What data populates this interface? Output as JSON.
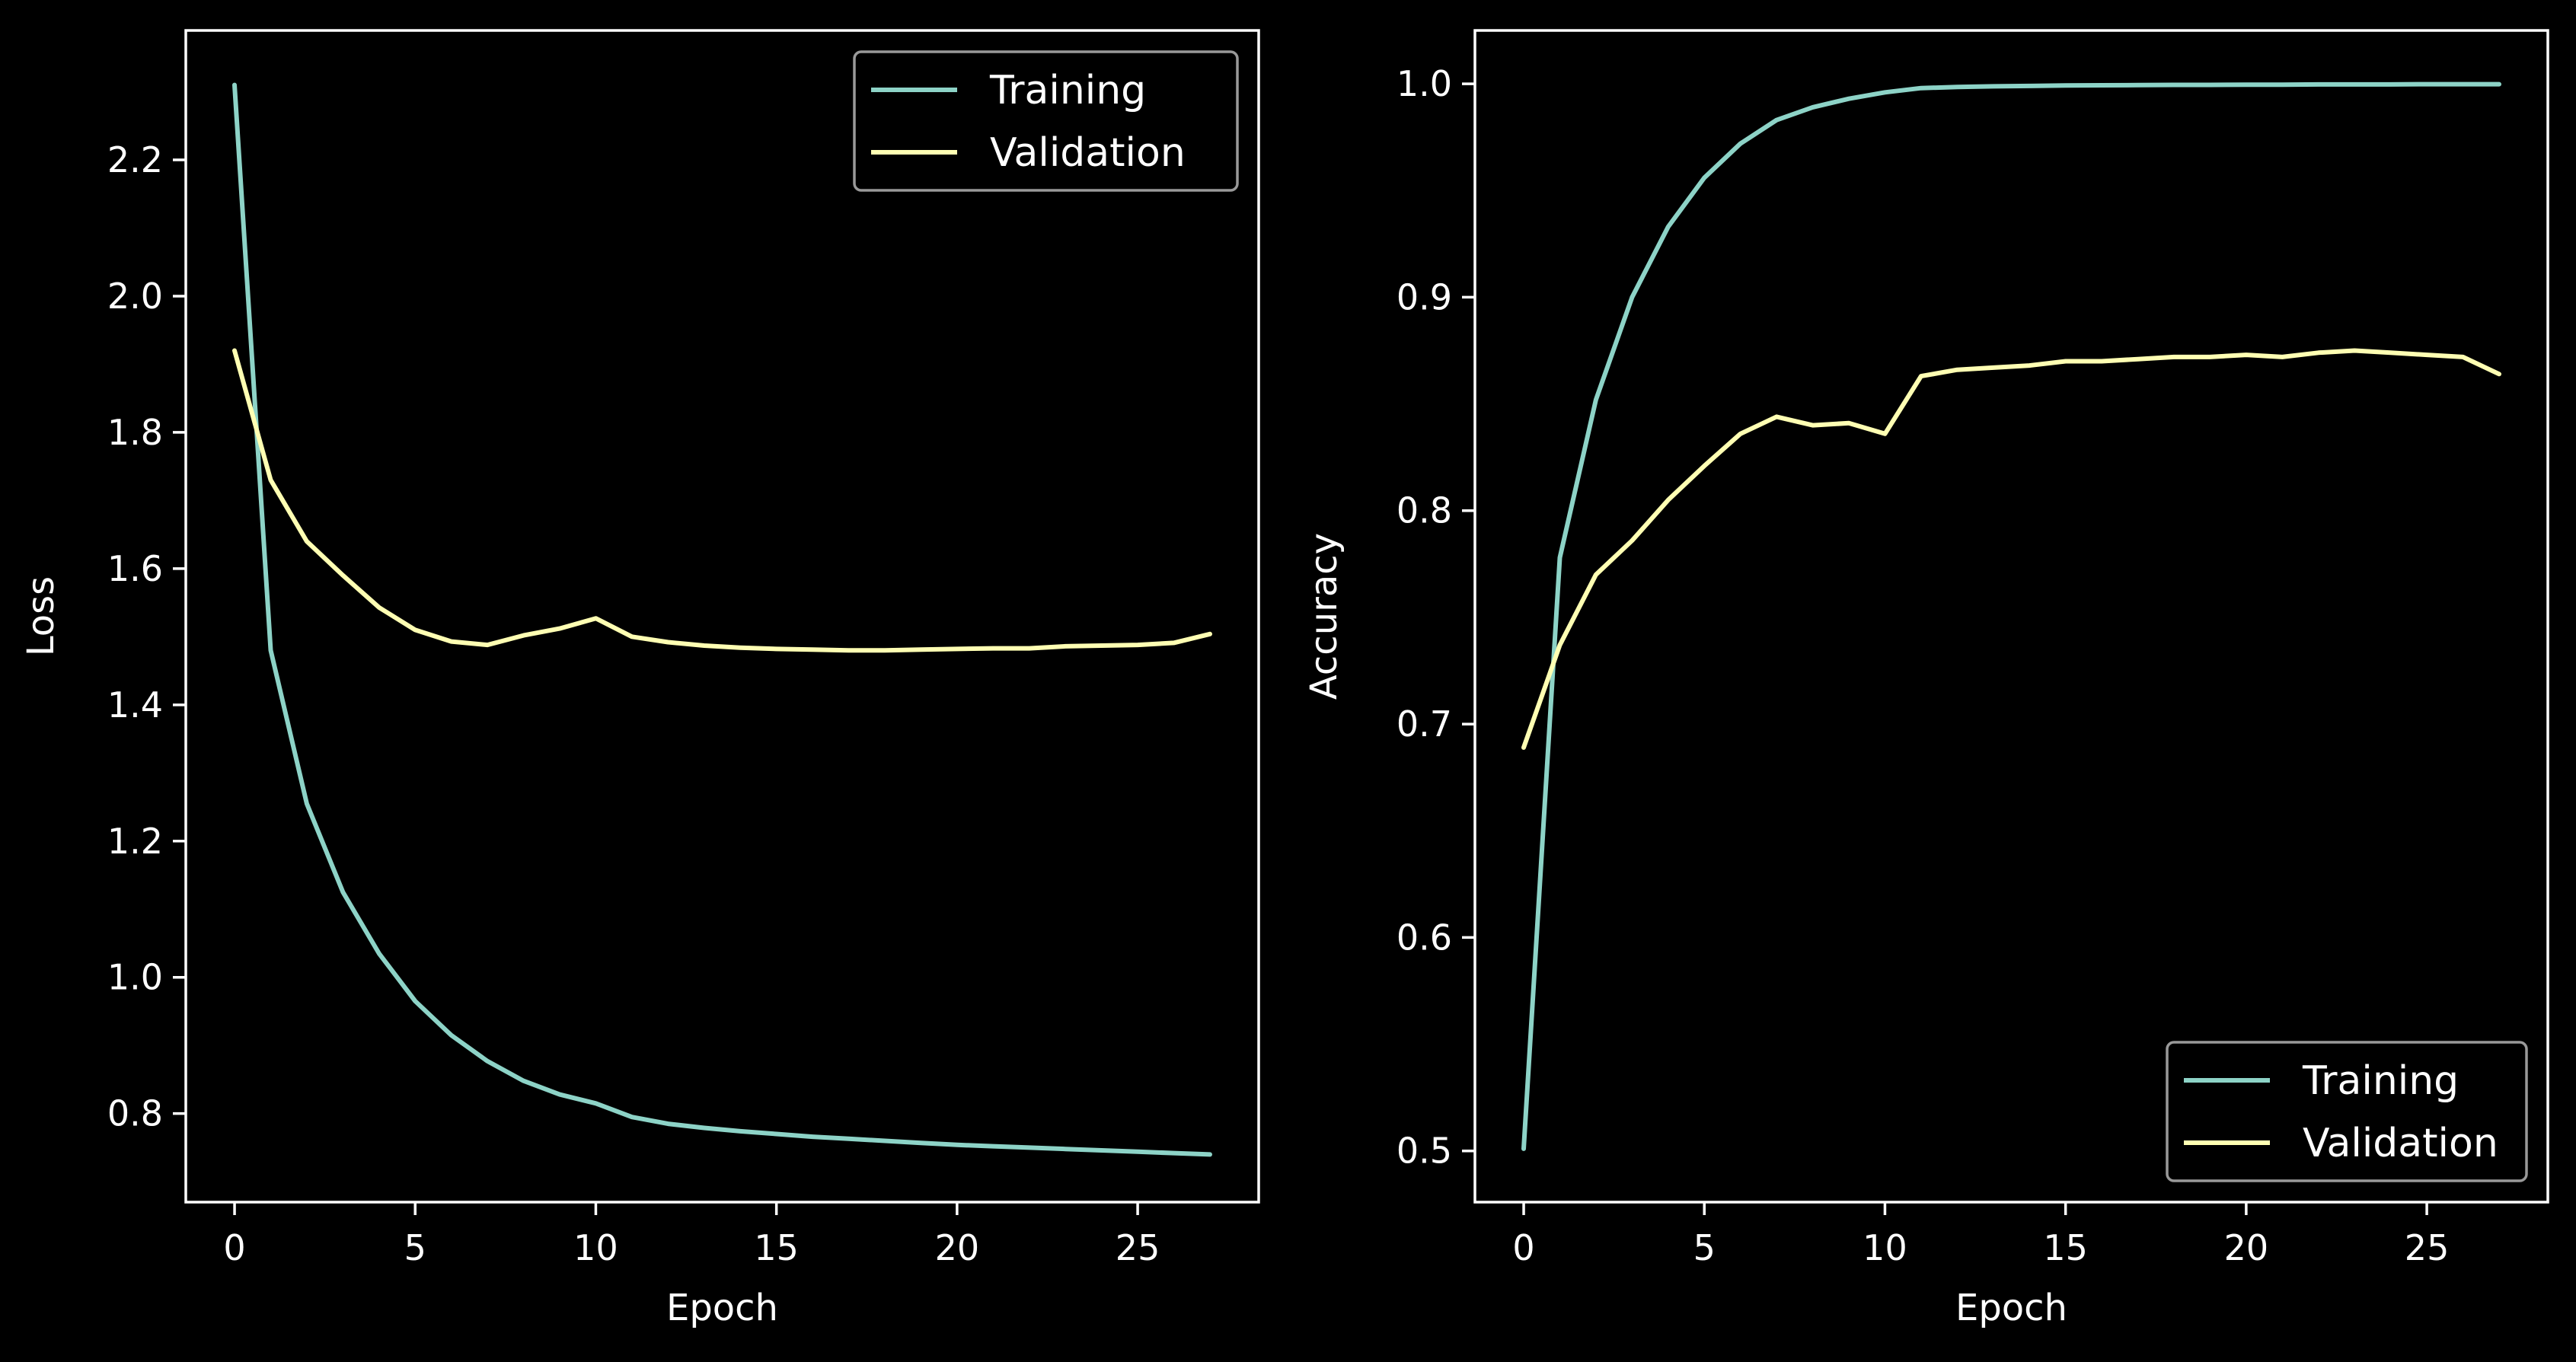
{
  "colors": {
    "background": "#000000",
    "axes": "#ffffff",
    "legend_border": "#999999"
  },
  "chart_data": [
    {
      "type": "line",
      "title": "",
      "xlabel": "Epoch",
      "ylabel": "Loss",
      "xlim": [
        -1.35,
        28.35
      ],
      "ylim": [
        0.67,
        2.39
      ],
      "xticks": [
        0,
        5,
        10,
        15,
        20,
        25
      ],
      "xtick_labels": [
        "0",
        "5",
        "10",
        "15",
        "20",
        "25"
      ],
      "yticks": [
        0.8,
        1.0,
        1.2,
        1.4,
        1.6,
        1.8,
        2.0,
        2.2
      ],
      "ytick_labels": [
        "0.8",
        "1.0",
        "1.2",
        "1.4",
        "1.6",
        "1.8",
        "2.0",
        "2.2"
      ],
      "legend": "top-right",
      "grid": false,
      "x": [
        0,
        1,
        2,
        3,
        4,
        5,
        6,
        7,
        8,
        9,
        10,
        11,
        12,
        13,
        14,
        15,
        16,
        17,
        18,
        19,
        20,
        21,
        22,
        23,
        24,
        25,
        26,
        27
      ],
      "series": [
        {
          "name": "Training",
          "color": "#8dd3c7",
          "values": [
            2.31,
            1.48,
            1.255,
            1.125,
            1.035,
            0.965,
            0.915,
            0.877,
            0.848,
            0.828,
            0.815,
            0.795,
            0.785,
            0.779,
            0.774,
            0.77,
            0.766,
            0.763,
            0.76,
            0.757,
            0.754,
            0.752,
            0.75,
            0.748,
            0.746,
            0.744,
            0.742,
            0.74
          ]
        },
        {
          "name": "Validation",
          "color": "#ffffb3",
          "values": [
            1.92,
            1.73,
            1.64,
            1.59,
            1.543,
            1.51,
            1.493,
            1.488,
            1.502,
            1.512,
            1.527,
            1.5,
            1.492,
            1.487,
            1.484,
            1.482,
            1.481,
            1.48,
            1.48,
            1.481,
            1.482,
            1.483,
            1.483,
            1.486,
            1.487,
            1.488,
            1.491,
            1.504
          ]
        }
      ]
    },
    {
      "type": "line",
      "title": "",
      "xlabel": "Epoch",
      "ylabel": "Accuracy",
      "xlim": [
        -1.35,
        28.35
      ],
      "ylim": [
        0.476,
        1.025
      ],
      "xticks": [
        0,
        5,
        10,
        15,
        20,
        25
      ],
      "xtick_labels": [
        "0",
        "5",
        "10",
        "15",
        "20",
        "25"
      ],
      "yticks": [
        0.5,
        0.6,
        0.7,
        0.8,
        0.9,
        1.0
      ],
      "ytick_labels": [
        "0.5",
        "0.6",
        "0.7",
        "0.8",
        "0.9",
        "1.0"
      ],
      "legend": "bottom-right",
      "grid": false,
      "x": [
        0,
        1,
        2,
        3,
        4,
        5,
        6,
        7,
        8,
        9,
        10,
        11,
        12,
        13,
        14,
        15,
        16,
        17,
        18,
        19,
        20,
        21,
        22,
        23,
        24,
        25,
        26,
        27
      ],
      "series": [
        {
          "name": "Training",
          "color": "#8dd3c7",
          "values": [
            0.501,
            0.778,
            0.852,
            0.9,
            0.933,
            0.956,
            0.972,
            0.983,
            0.989,
            0.993,
            0.996,
            0.998,
            0.9985,
            0.9988,
            0.999,
            0.9992,
            0.9993,
            0.9994,
            0.9995,
            0.9995,
            0.9996,
            0.9996,
            0.9997,
            0.9997,
            0.9997,
            0.9998,
            0.9998,
            0.9998
          ]
        },
        {
          "name": "Validation",
          "color": "#ffffb3",
          "values": [
            0.689,
            0.737,
            0.77,
            0.786,
            0.805,
            0.821,
            0.836,
            0.844,
            0.84,
            0.841,
            0.836,
            0.863,
            0.866,
            0.867,
            0.868,
            0.87,
            0.87,
            0.871,
            0.872,
            0.872,
            0.873,
            0.872,
            0.874,
            0.875,
            0.874,
            0.873,
            0.872,
            0.864
          ]
        }
      ]
    }
  ]
}
